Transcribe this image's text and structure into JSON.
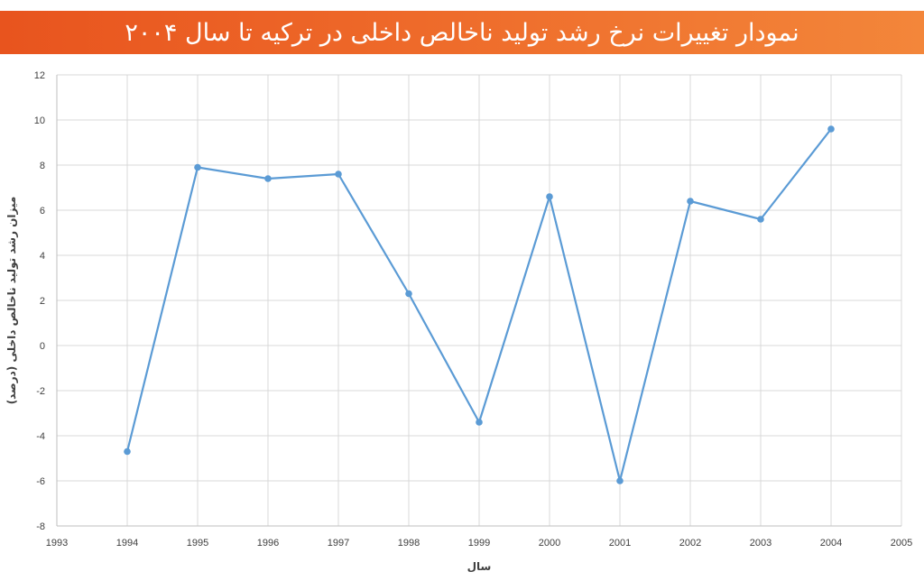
{
  "header": {
    "title": "نمودار تغییرات نرخ رشد تولید ناخالص داخلی در ترکیه تا سال ۲۰۰۴"
  },
  "colors": {
    "title_bar": "#ee6a2a",
    "line": "#5b9bd5",
    "grid": "#d9d9d9",
    "axis_text": "#404040"
  },
  "chart_data": {
    "type": "line",
    "xlabel": "سال",
    "ylabel": "میزان رشد تولید ناخالص داخلی (درصد)",
    "xlim": [
      1993,
      2005
    ],
    "ylim": [
      -8,
      12
    ],
    "x_ticks": [
      1993,
      1994,
      1995,
      1996,
      1997,
      1998,
      1999,
      2000,
      2001,
      2002,
      2003,
      2004,
      2005
    ],
    "y_ticks": [
      12,
      10,
      8,
      6,
      4,
      2,
      0,
      -2,
      -4,
      -6,
      -8
    ],
    "grid": true,
    "legend": "none",
    "series": [
      {
        "x": [
          1994,
          1995,
          1996,
          1997,
          1998,
          1999,
          2000,
          2001,
          2002,
          2003,
          2004
        ],
        "values": [
          -4.7,
          7.9,
          7.4,
          7.6,
          2.3,
          -3.4,
          6.6,
          -6.0,
          6.4,
          5.6,
          9.6
        ]
      }
    ]
  }
}
